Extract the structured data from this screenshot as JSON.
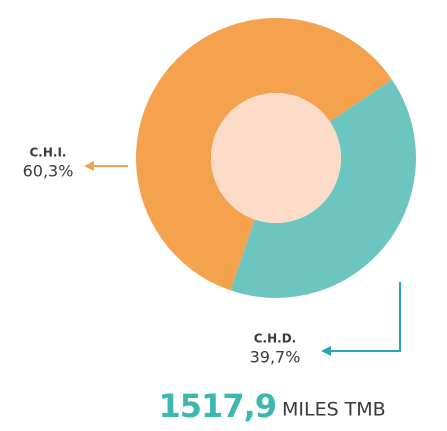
{
  "chart_data": {
    "type": "donut",
    "categories": [
      "C.H.I.",
      "C.H.D."
    ],
    "values": [
      60.3,
      39.7
    ],
    "value_labels": [
      "60,3%",
      "39,7%"
    ],
    "colors": [
      "#f5a24e",
      "#6cc6bf"
    ],
    "total": "1517,9",
    "total_unit": "MILES TMB"
  }
}
